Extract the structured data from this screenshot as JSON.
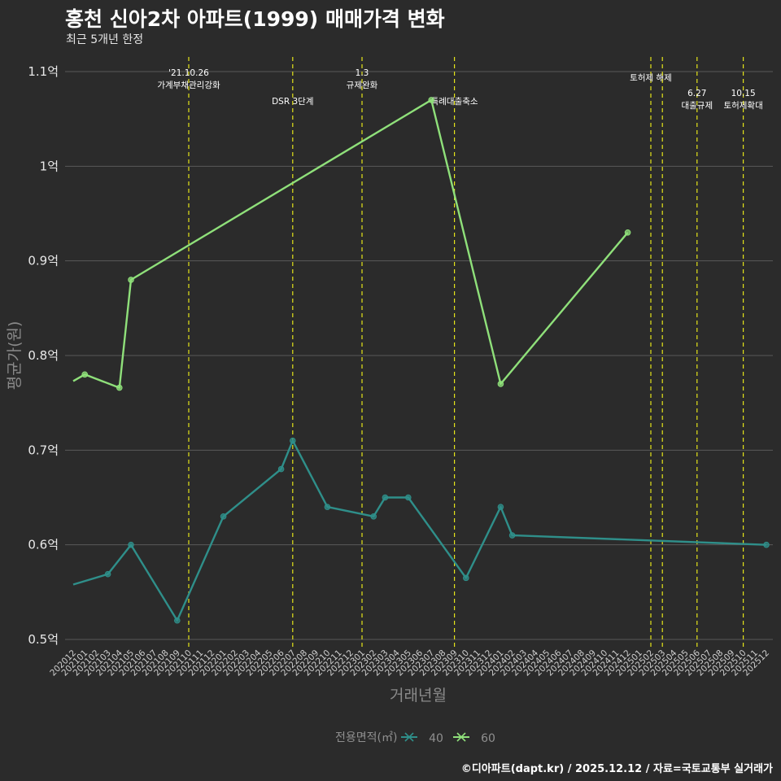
{
  "header": {
    "title": "홍천 신아2차 아파트(1999) 매매가격 변화",
    "subtitle": "최근 5개년 한정"
  },
  "caption": "©디아파트(dapt.kr) / 2025.12.12 / 자료=국토교통부 실거래가",
  "chart_data": {
    "type": "line",
    "title": "홍천 신아2차 아파트(1999) 매매가격 변화",
    "subtitle": "최근 5개년 한정",
    "xlabel": "거래년월",
    "ylabel": "평균가(원)",
    "ylim": [
      0.5,
      1.1
    ],
    "yticks": [
      {
        "value": 0.5,
        "label": "0.5억"
      },
      {
        "value": 0.6,
        "label": "0.6억"
      },
      {
        "value": 0.7,
        "label": "0.7억"
      },
      {
        "value": 0.8,
        "label": "0.8억"
      },
      {
        "value": 0.9,
        "label": "0.9억"
      },
      {
        "value": 1.0,
        "label": "1억"
      },
      {
        "value": 1.1,
        "label": "1.1억"
      }
    ],
    "grid": true,
    "x_start": "202012",
    "x_end": "202512",
    "x_ticks": [
      "202012",
      "202101",
      "202102",
      "202103",
      "202104",
      "202105",
      "202106",
      "202107",
      "202108",
      "202109",
      "202110",
      "202111",
      "202112",
      "202201",
      "202202",
      "202203",
      "202204",
      "202205",
      "202206",
      "202207",
      "202208",
      "202209",
      "202210",
      "202211",
      "202212",
      "202301",
      "202302",
      "202303",
      "202304",
      "202305",
      "202306",
      "202307",
      "202308",
      "202309",
      "202310",
      "202311",
      "202312",
      "202401",
      "202402",
      "202403",
      "202404",
      "202405",
      "202406",
      "202407",
      "202408",
      "202409",
      "202410",
      "202411",
      "202412",
      "202501",
      "202502",
      "202503",
      "202504",
      "202505",
      "202506",
      "202507",
      "202508",
      "202509",
      "202510",
      "202511",
      "202512"
    ],
    "legend": {
      "title": "전용면적(㎡)",
      "position": "bottom"
    },
    "series": [
      {
        "name": "40",
        "color": "#2f8f8a",
        "points": [
          {
            "x": "202012",
            "y": 0.558,
            "marker": false
          },
          {
            "x": "202103",
            "y": 0.569,
            "marker": true
          },
          {
            "x": "202105",
            "y": 0.6,
            "marker": true
          },
          {
            "x": "202109",
            "y": 0.52,
            "marker": true
          },
          {
            "x": "202201",
            "y": 0.63,
            "marker": true
          },
          {
            "x": "202206",
            "y": 0.68,
            "marker": true
          },
          {
            "x": "202207",
            "y": 0.71,
            "marker": true
          },
          {
            "x": "202210",
            "y": 0.64,
            "marker": true
          },
          {
            "x": "202302",
            "y": 0.63,
            "marker": true
          },
          {
            "x": "202303",
            "y": 0.65,
            "marker": true
          },
          {
            "x": "202305",
            "y": 0.65,
            "marker": true
          },
          {
            "x": "202310",
            "y": 0.565,
            "marker": true
          },
          {
            "x": "202401",
            "y": 0.64,
            "marker": true
          },
          {
            "x": "202402",
            "y": 0.61,
            "marker": true
          },
          {
            "x": "202512",
            "y": 0.6,
            "marker": true
          }
        ]
      },
      {
        "name": "60",
        "color": "#8fe07a",
        "points": [
          {
            "x": "202012",
            "y": 0.773,
            "marker": false
          },
          {
            "x": "202101",
            "y": 0.78,
            "marker": true
          },
          {
            "x": "202104",
            "y": 0.766,
            "marker": true
          },
          {
            "x": "202105",
            "y": 0.88,
            "marker": true
          },
          {
            "x": "202307",
            "y": 1.07,
            "marker": true
          },
          {
            "x": "202401",
            "y": 0.77,
            "marker": true
          },
          {
            "x": "202412",
            "y": 0.93,
            "marker": true
          }
        ]
      }
    ],
    "events": [
      {
        "x": "202110",
        "lines": [
          "'21.10.26",
          "가계부채관리강화"
        ],
        "level": 0
      },
      {
        "x": "202207",
        "lines": [
          "DSR 3단계"
        ],
        "level": 2
      },
      {
        "x": "202301",
        "lines": [
          "1.3",
          "규제완화"
        ],
        "level": 0
      },
      {
        "x": "202309",
        "lines": [
          "특례대출축소"
        ],
        "level": 2
      },
      {
        "x": "202502",
        "lines": [
          "토허제 해제"
        ],
        "level": 1
      },
      {
        "x": "202503",
        "lines": [],
        "level": 1
      },
      {
        "x": "202506",
        "lines": [
          "6.27",
          "대출규제"
        ],
        "level": 3
      },
      {
        "x": "202510",
        "lines": [
          "10.15",
          "토허제확대"
        ],
        "level": 3
      }
    ]
  }
}
